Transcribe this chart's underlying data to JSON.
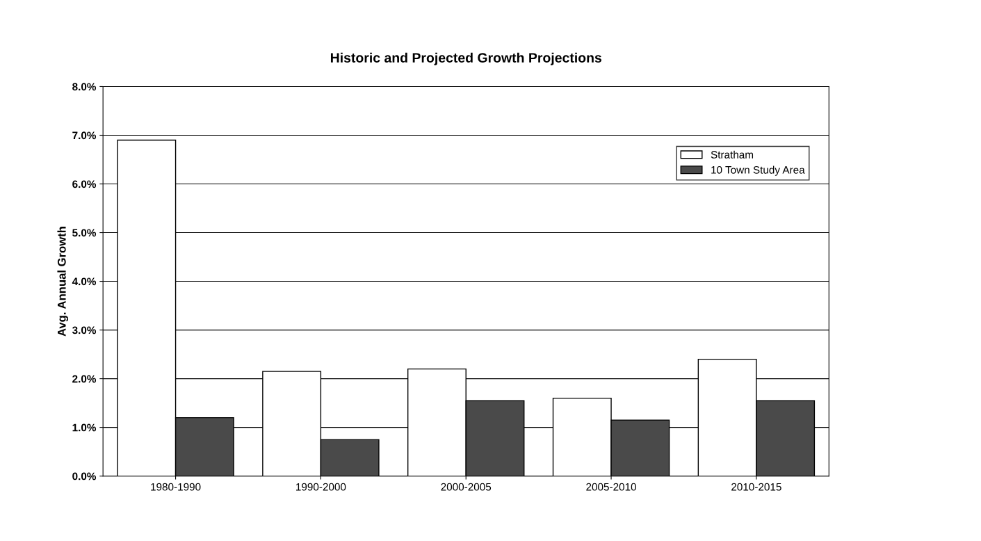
{
  "chart_data": {
    "type": "bar",
    "title": "Historic and Projected Growth Projections",
    "ylabel": "Avg. Annual Growth",
    "categories": [
      "1980-1990",
      "1990-2000",
      "2000-2005",
      "2005-2010",
      "2010-2015"
    ],
    "series": [
      {
        "name": "Stratham",
        "color": "#ffffff",
        "values": [
          6.9,
          2.15,
          2.2,
          1.6,
          2.4
        ]
      },
      {
        "name": "10 Town Study Area",
        "color": "#4a4a4a",
        "values": [
          1.2,
          0.75,
          1.55,
          1.15,
          1.55
        ]
      }
    ],
    "ylim": [
      0,
      8
    ],
    "yticks": [
      {
        "value": 0,
        "label": "0.0%"
      },
      {
        "value": 1,
        "label": "1.0%"
      },
      {
        "value": 2,
        "label": "2.0%"
      },
      {
        "value": 3,
        "label": "3.0%"
      },
      {
        "value": 4,
        "label": "4.0%"
      },
      {
        "value": 5,
        "label": "5.0%"
      },
      {
        "value": 6,
        "label": "6.0%"
      },
      {
        "value": 7,
        "label": "7.0%"
      },
      {
        "value": 8,
        "label": "8.0%"
      }
    ],
    "grid": "y",
    "legend": "top right"
  }
}
